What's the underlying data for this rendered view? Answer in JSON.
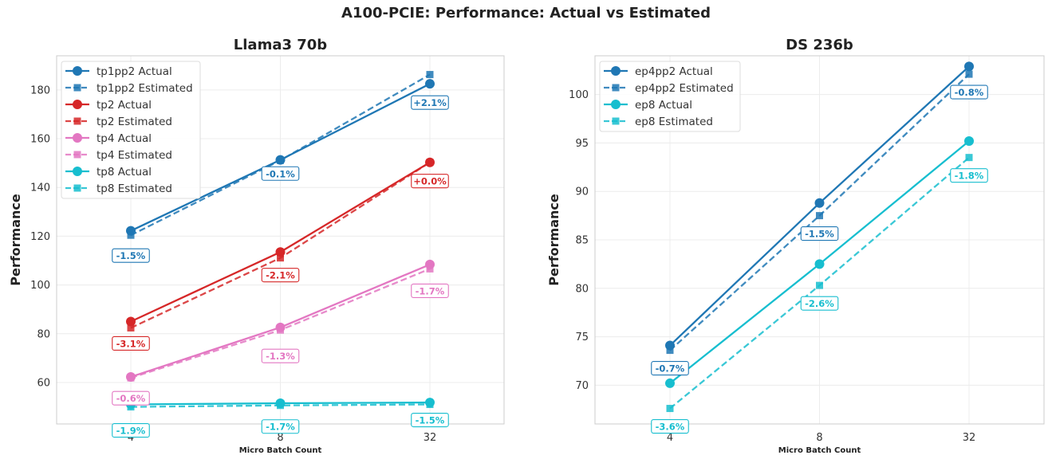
{
  "figure_title": "A100-PCIE: Performance: Actual vs Estimated",
  "chart_data": [
    {
      "type": "line",
      "title": "Llama3 70b",
      "xlabel": "Micro Batch Count",
      "ylabel": "Performance",
      "x_scale": "categorical",
      "categories": [
        "4",
        "8",
        "32"
      ],
      "ylim": [
        43,
        194
      ],
      "yticks": [
        60,
        80,
        100,
        120,
        140,
        160,
        180
      ],
      "grid": true,
      "legend_position": "upper left",
      "series": [
        {
          "name": "tp1pp2 Actual",
          "color": "#1f77b4",
          "style": "solid",
          "marker": "circle",
          "values": [
            122.2,
            151.3,
            182.5
          ]
        },
        {
          "name": "tp1pp2 Estimated",
          "color": "#1f77b4",
          "style": "dashed",
          "marker": "square",
          "values": [
            120.4,
            151.1,
            186.3
          ]
        },
        {
          "name": "tp2 Actual",
          "color": "#d62728",
          "style": "solid",
          "marker": "circle",
          "values": [
            85.0,
            113.5,
            150.3
          ]
        },
        {
          "name": "tp2 Estimated",
          "color": "#d62728",
          "style": "dashed",
          "marker": "square",
          "values": [
            82.4,
            111.1,
            150.3
          ]
        },
        {
          "name": "tp4 Actual",
          "color": "#e377c2",
          "style": "solid",
          "marker": "circle",
          "values": [
            62.3,
            82.6,
            108.4
          ]
        },
        {
          "name": "tp4 Estimated",
          "color": "#e377c2",
          "style": "dashed",
          "marker": "square",
          "values": [
            61.9,
            81.5,
            106.6
          ]
        },
        {
          "name": "tp8 Actual",
          "color": "#17becf",
          "style": "solid",
          "marker": "circle",
          "values": [
            51.0,
            51.5,
            51.8
          ]
        },
        {
          "name": "tp8 Estimated",
          "color": "#17becf",
          "style": "dashed",
          "marker": "square",
          "values": [
            50.0,
            50.6,
            51.0
          ]
        }
      ],
      "annotations": [
        {
          "series": "tp1pp2",
          "color": "#1f77b4",
          "labels": [
            "-1.5%",
            "-0.1%",
            "+2.1%"
          ]
        },
        {
          "series": "tp2",
          "color": "#d62728",
          "labels": [
            "-3.1%",
            "-2.1%",
            "+0.0%"
          ]
        },
        {
          "series": "tp4",
          "color": "#e377c2",
          "labels": [
            "-0.6%",
            "-1.3%",
            "-1.7%"
          ]
        },
        {
          "series": "tp8",
          "color": "#17becf",
          "labels": [
            "-1.9%",
            "-1.7%",
            "-1.5%"
          ]
        }
      ]
    },
    {
      "type": "line",
      "title": "DS 236b",
      "xlabel": "Micro Batch Count",
      "ylabel": "Performance",
      "x_scale": "categorical",
      "categories": [
        "4",
        "8",
        "32"
      ],
      "ylim": [
        66.0,
        104.0
      ],
      "yticks": [
        70,
        75,
        80,
        85,
        90,
        95,
        100
      ],
      "grid": true,
      "legend_position": "upper left",
      "series": [
        {
          "name": "ep4pp2 Actual",
          "color": "#1f77b4",
          "style": "solid",
          "marker": "circle",
          "values": [
            74.1,
            88.8,
            102.9
          ]
        },
        {
          "name": "ep4pp2 Estimated",
          "color": "#1f77b4",
          "style": "dashed",
          "marker": "square",
          "values": [
            73.6,
            87.5,
            102.1
          ]
        },
        {
          "name": "ep8 Actual",
          "color": "#17becf",
          "style": "solid",
          "marker": "circle",
          "values": [
            70.2,
            82.5,
            95.2
          ]
        },
        {
          "name": "ep8 Estimated",
          "color": "#17becf",
          "style": "dashed",
          "marker": "square",
          "values": [
            67.6,
            80.3,
            93.5
          ]
        }
      ],
      "annotations": [
        {
          "series": "ep4pp2",
          "color": "#1f77b4",
          "labels": [
            "-0.7%",
            "-1.5%",
            "-0.8%"
          ]
        },
        {
          "series": "ep8",
          "color": "#17becf",
          "labels": [
            "-3.6%",
            "-2.6%",
            "-1.8%"
          ]
        }
      ]
    }
  ]
}
